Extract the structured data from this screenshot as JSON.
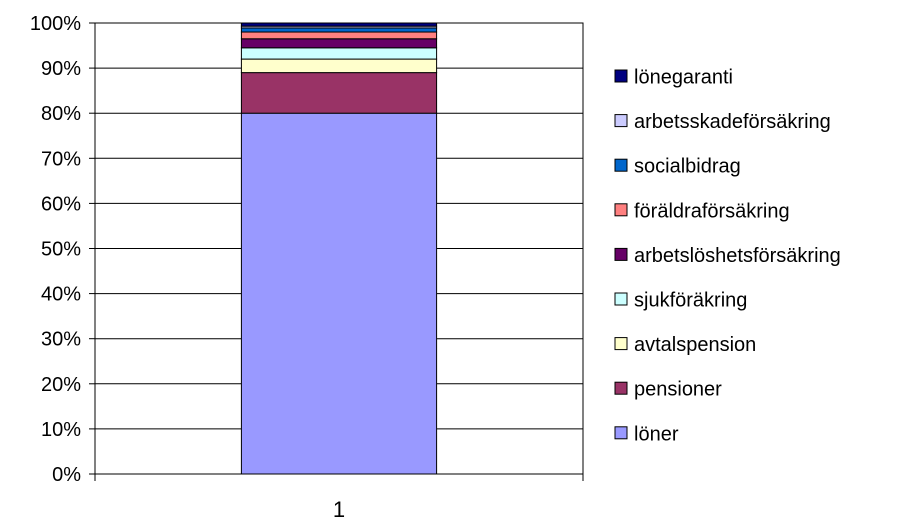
{
  "chart_data": {
    "type": "bar",
    "stacked": "percent",
    "categories": [
      "1"
    ],
    "ylim": [
      0,
      100
    ],
    "y_tick_labels": [
      "0%",
      "10%",
      "20%",
      "30%",
      "40%",
      "50%",
      "60%",
      "70%",
      "80%",
      "90%",
      "100%"
    ],
    "grid": true,
    "legend_position": "right",
    "series": [
      {
        "name": "löner",
        "values": [
          80
        ],
        "color": "#9999FF"
      },
      {
        "name": "pensioner",
        "values": [
          9
        ],
        "color": "#993366"
      },
      {
        "name": "avtalspension",
        "values": [
          3
        ],
        "color": "#FFFFCC"
      },
      {
        "name": "sjukföräkring",
        "values": [
          2.5
        ],
        "color": "#CCFFFF"
      },
      {
        "name": "arbetslöshetsförsäkring",
        "values": [
          2
        ],
        "color": "#660066"
      },
      {
        "name": "föräldraförsäkring",
        "values": [
          1.5
        ],
        "color": "#FF8080"
      },
      {
        "name": "socialbidrag",
        "values": [
          0.9
        ],
        "color": "#0066CC"
      },
      {
        "name": "arbetsskadeförsäkring",
        "values": [
          0.4
        ],
        "color": "#CCCCFF"
      },
      {
        "name": "lönegaranti",
        "values": [
          0.7
        ],
        "color": "#000080"
      }
    ]
  }
}
